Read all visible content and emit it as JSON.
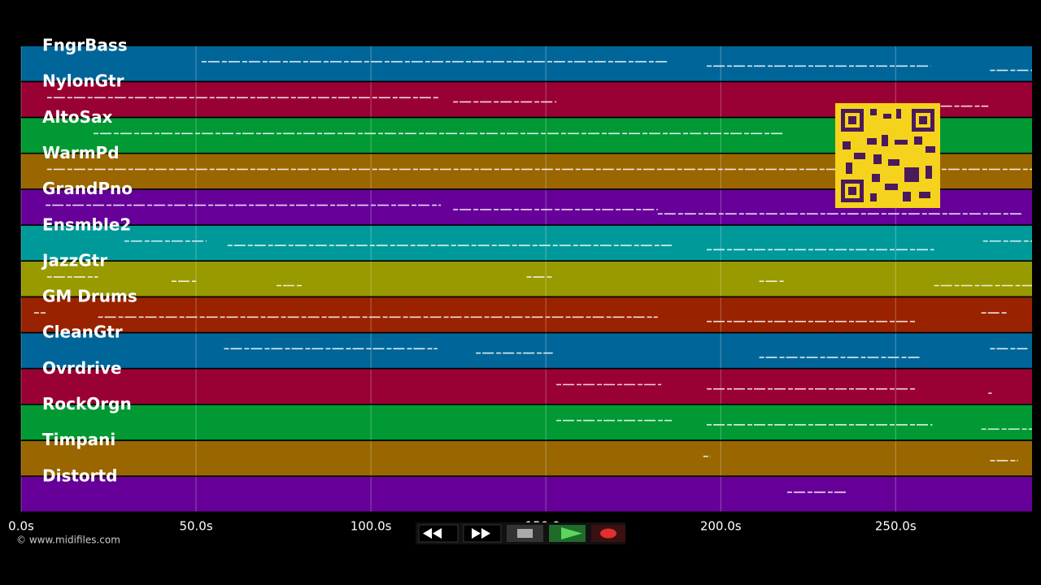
{
  "chart_data": {
    "type": "timeline",
    "xlim": [
      0,
      289
    ],
    "xticks": [
      {
        "value": 0,
        "label": "0.0s"
      },
      {
        "value": 50,
        "label": "50.0s"
      },
      {
        "value": 100,
        "label": "100.0s"
      },
      {
        "value": 150,
        "label": "150.0s"
      },
      {
        "value": 200,
        "label": "200.0s"
      },
      {
        "value": 250,
        "label": "250.0s"
      }
    ],
    "grid": true,
    "credit": "© www.midifiles.com",
    "tracks": [
      {
        "name": "FngrBass",
        "color": "#00669a",
        "notes": [
          [
            51.6,
            185
          ],
          [
            196,
            260
          ],
          [
            277,
            289
          ]
        ]
      },
      {
        "name": "NylonGtr",
        "color": "#990033",
        "notes": [
          [
            7.4,
            119.5
          ],
          [
            123.5,
            153
          ],
          [
            261,
            276.5
          ]
        ]
      },
      {
        "name": "AltoSax",
        "color": "#009933",
        "notes": [
          [
            20.7,
            218
          ]
        ]
      },
      {
        "name": "WarmPd",
        "color": "#996600",
        "notes": [
          [
            7.4,
            289
          ]
        ]
      },
      {
        "name": "GrandPno",
        "color": "#660099",
        "notes": [
          [
            7,
            120
          ],
          [
            123.5,
            182
          ],
          [
            182,
            286
          ]
        ]
      },
      {
        "name": "Ensmble2",
        "color": "#009999",
        "notes": [
          [
            29.5,
            53
          ],
          [
            59,
            186
          ],
          [
            196,
            261
          ],
          [
            275,
            289
          ]
        ]
      },
      {
        "name": "JazzGtr",
        "color": "#999900",
        "notes": [
          [
            7.4,
            22
          ],
          [
            43,
            50
          ],
          [
            73,
            80.5
          ],
          [
            144.5,
            152
          ],
          [
            211,
            218
          ],
          [
            261,
            289
          ]
        ]
      },
      {
        "name": "GM Drums",
        "color": "#992200",
        "notes": [
          [
            3.7,
            7
          ],
          [
            22,
            182
          ],
          [
            196,
            256
          ],
          [
            274.5,
            282
          ]
        ]
      },
      {
        "name": "CleanGtr",
        "color": "#00669a",
        "notes": [
          [
            58,
            119
          ],
          [
            130,
            152
          ],
          [
            211,
            257
          ],
          [
            277,
            287.7
          ]
        ]
      },
      {
        "name": "Ovrdrive",
        "color": "#990033",
        "notes": [
          [
            153,
            183
          ],
          [
            196,
            256
          ],
          [
            276.5,
            277.5
          ]
        ]
      },
      {
        "name": "RockOrgn",
        "color": "#009933",
        "notes": [
          [
            153,
            186
          ],
          [
            196,
            260.5
          ],
          [
            274.5,
            289
          ]
        ]
      },
      {
        "name": "Timpani",
        "color": "#996600",
        "notes": [
          [
            195,
            197
          ],
          [
            277,
            285
          ]
        ]
      },
      {
        "name": "Distortd",
        "color": "#660099",
        "notes": [
          [
            219,
            236
          ]
        ]
      }
    ]
  }
}
